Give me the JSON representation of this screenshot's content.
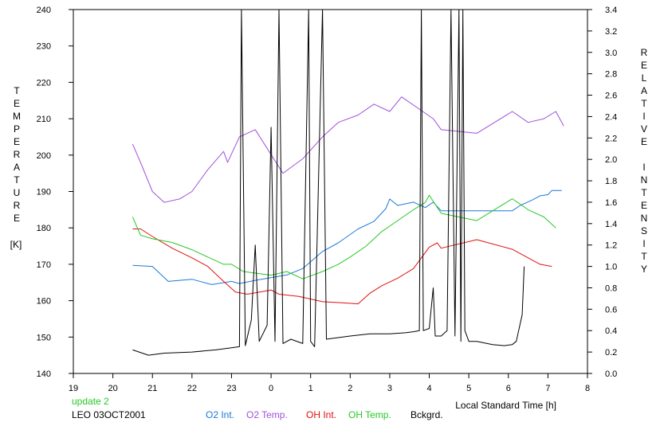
{
  "chart_data": {
    "type": "line",
    "ylabel_left": [
      "T",
      "E",
      "M",
      "P",
      "E",
      "R",
      "A",
      "T",
      "U",
      "R",
      "E"
    ],
    "ylabel_left_unit": "[K]",
    "ylabel_right": [
      "R",
      "E",
      "L",
      "A",
      "T",
      "I",
      "V",
      "E",
      "",
      "I",
      "N",
      "T",
      "E",
      "N",
      "S",
      "I",
      "T",
      "Y"
    ],
    "xlabel": "Local Standard Time [h]",
    "xlim": [
      19,
      32
    ],
    "x_tick_labels": [
      "19",
      "20",
      "21",
      "22",
      "23",
      "0",
      "1",
      "2",
      "3",
      "4",
      "5",
      "6",
      "7",
      "8"
    ],
    "ylim_left": [
      140,
      240
    ],
    "y_left_ticks": [
      "140",
      "150",
      "160",
      "170",
      "180",
      "190",
      "200",
      "210",
      "220",
      "230",
      "240"
    ],
    "ylim_right": [
      0.0,
      3.4
    ],
    "y_right_ticks": [
      "0.0",
      "0.2",
      "0.4",
      "0.6",
      "0.8",
      "1.0",
      "1.2",
      "1.4",
      "1.6",
      "1.8",
      "2.0",
      "2.2",
      "2.4",
      "2.6",
      "2.8",
      "3.0",
      "3.2",
      "3.4"
    ],
    "grid": false,
    "legend_position": "bottom",
    "series": [
      {
        "name": "O2 Int.",
        "axis": "right",
        "color": "#1e78d8",
        "points": [
          [
            20.5,
            1.01
          ],
          [
            21.0,
            1.0
          ],
          [
            21.4,
            0.86
          ],
          [
            22.0,
            0.88
          ],
          [
            22.5,
            0.83
          ],
          [
            23.0,
            0.86
          ],
          [
            23.2,
            0.84
          ],
          [
            23.6,
            0.87
          ],
          [
            24.4,
            0.92
          ],
          [
            24.8,
            0.98
          ],
          [
            25.3,
            1.14
          ],
          [
            25.7,
            1.22
          ],
          [
            26.2,
            1.35
          ],
          [
            26.6,
            1.42
          ],
          [
            26.9,
            1.54
          ],
          [
            27.0,
            1.63
          ],
          [
            27.2,
            1.57
          ],
          [
            27.6,
            1.6
          ],
          [
            27.9,
            1.55
          ],
          [
            28.1,
            1.6
          ],
          [
            28.3,
            1.52
          ],
          [
            30.1,
            1.52
          ],
          [
            30.3,
            1.57
          ],
          [
            30.6,
            1.62
          ],
          [
            30.8,
            1.66
          ],
          [
            31.0,
            1.67
          ],
          [
            31.1,
            1.71
          ],
          [
            31.35,
            1.71
          ]
        ]
      },
      {
        "name": "O2 Temp.",
        "axis": "left",
        "color": "#a050d8",
        "points": [
          [
            20.5,
            203
          ],
          [
            20.7,
            198
          ],
          [
            21.0,
            190
          ],
          [
            21.3,
            187
          ],
          [
            21.7,
            188
          ],
          [
            22.0,
            190
          ],
          [
            22.4,
            196
          ],
          [
            22.8,
            201
          ],
          [
            22.9,
            198
          ],
          [
            23.2,
            205
          ],
          [
            23.6,
            207
          ],
          [
            24.3,
            195
          ],
          [
            24.8,
            199
          ],
          [
            25.3,
            205
          ],
          [
            25.7,
            209
          ],
          [
            26.2,
            211
          ],
          [
            26.6,
            214
          ],
          [
            27.0,
            212
          ],
          [
            27.3,
            216
          ],
          [
            27.7,
            213
          ],
          [
            28.1,
            210
          ],
          [
            28.3,
            207
          ],
          [
            29.2,
            206
          ],
          [
            30.1,
            212
          ],
          [
            30.5,
            209
          ],
          [
            30.9,
            210
          ],
          [
            31.2,
            212
          ],
          [
            31.4,
            208
          ]
        ]
      },
      {
        "name": "OH Int.",
        "axis": "right",
        "color": "#e01010",
        "points": [
          [
            20.5,
            1.35
          ],
          [
            20.7,
            1.35
          ],
          [
            21.0,
            1.28
          ],
          [
            21.5,
            1.17
          ],
          [
            22.0,
            1.08
          ],
          [
            22.4,
            1.0
          ],
          [
            22.8,
            0.86
          ],
          [
            23.1,
            0.76
          ],
          [
            23.4,
            0.74
          ],
          [
            24.0,
            0.78
          ],
          [
            24.2,
            0.74
          ],
          [
            24.7,
            0.72
          ],
          [
            25.3,
            0.67
          ],
          [
            25.8,
            0.66
          ],
          [
            26.2,
            0.65
          ],
          [
            26.5,
            0.75
          ],
          [
            26.8,
            0.82
          ],
          [
            27.2,
            0.89
          ],
          [
            27.6,
            0.98
          ],
          [
            27.8,
            1.08
          ],
          [
            28.0,
            1.18
          ],
          [
            28.2,
            1.22
          ],
          [
            28.3,
            1.17
          ],
          [
            29.2,
            1.25
          ],
          [
            30.1,
            1.16
          ],
          [
            30.5,
            1.08
          ],
          [
            30.8,
            1.02
          ],
          [
            31.1,
            1.0
          ]
        ]
      },
      {
        "name": "OH Temp.",
        "axis": "left",
        "color": "#28c828",
        "points": [
          [
            20.5,
            183
          ],
          [
            20.7,
            178
          ],
          [
            21.0,
            177
          ],
          [
            21.5,
            176
          ],
          [
            22.0,
            174
          ],
          [
            22.4,
            172
          ],
          [
            22.8,
            170
          ],
          [
            23.0,
            170
          ],
          [
            23.3,
            168
          ],
          [
            24.0,
            167
          ],
          [
            24.4,
            168
          ],
          [
            24.8,
            166
          ],
          [
            25.3,
            168
          ],
          [
            25.7,
            170
          ],
          [
            26.0,
            172
          ],
          [
            26.4,
            175
          ],
          [
            26.8,
            179
          ],
          [
            27.2,
            182
          ],
          [
            27.6,
            185
          ],
          [
            27.9,
            187
          ],
          [
            28.0,
            189
          ],
          [
            28.3,
            184
          ],
          [
            29.2,
            182
          ],
          [
            30.1,
            188
          ],
          [
            30.5,
            185
          ],
          [
            30.9,
            183
          ],
          [
            31.2,
            180
          ]
        ]
      },
      {
        "name": "Bckgrd.",
        "axis": "right",
        "color": "#000000",
        "points": [
          [
            20.5,
            0.22
          ],
          [
            20.9,
            0.17
          ],
          [
            21.3,
            0.19
          ],
          [
            22.0,
            0.2
          ],
          [
            22.6,
            0.22
          ],
          [
            23.0,
            0.24
          ],
          [
            23.2,
            0.25
          ],
          [
            23.25,
            3.4
          ],
          [
            23.35,
            0.26
          ],
          [
            23.5,
            0.5
          ],
          [
            23.6,
            1.2
          ],
          [
            23.7,
            0.3
          ],
          [
            23.9,
            0.45
          ],
          [
            24.0,
            2.3
          ],
          [
            24.1,
            0.3
          ],
          [
            24.2,
            3.4
          ],
          [
            24.3,
            0.28
          ],
          [
            24.5,
            0.32
          ],
          [
            24.8,
            0.28
          ],
          [
            24.95,
            3.4
          ],
          [
            25.0,
            0.3
          ],
          [
            25.1,
            0.25
          ],
          [
            25.3,
            3.4
          ],
          [
            25.4,
            0.32
          ],
          [
            25.6,
            0.33
          ],
          [
            26.0,
            0.35
          ],
          [
            26.5,
            0.37
          ],
          [
            27.0,
            0.37
          ],
          [
            27.4,
            0.38
          ],
          [
            27.6,
            0.39
          ],
          [
            27.75,
            0.4
          ],
          [
            27.8,
            3.4
          ],
          [
            27.85,
            0.4
          ],
          [
            28.0,
            0.42
          ],
          [
            28.1,
            0.8
          ],
          [
            28.15,
            0.35
          ],
          [
            28.3,
            0.35
          ],
          [
            28.45,
            0.4
          ],
          [
            28.55,
            3.4
          ],
          [
            28.65,
            0.35
          ],
          [
            28.75,
            3.4
          ],
          [
            28.8,
            0.3
          ],
          [
            28.85,
            3.4
          ],
          [
            28.9,
            0.4
          ],
          [
            29.0,
            0.3
          ],
          [
            29.2,
            0.3
          ],
          [
            29.6,
            0.27
          ],
          [
            29.9,
            0.26
          ],
          [
            30.1,
            0.27
          ],
          [
            30.2,
            0.3
          ],
          [
            30.35,
            0.55
          ],
          [
            30.4,
            1.0
          ]
        ]
      }
    ]
  },
  "footer": {
    "update_label": "update 2",
    "station_label": "LEO 03OCT2001",
    "legend_o2_int": "O2 Int.",
    "legend_o2_temp": "O2 Temp.",
    "legend_oh_int": "OH Int.",
    "legend_oh_temp": "OH Temp.",
    "legend_bckgrd": "Bckgrd."
  },
  "colors": {
    "o2_int": "#1e78d8",
    "o2_temp": "#a050d8",
    "oh_int": "#e01010",
    "oh_temp": "#28c828",
    "bckgrd": "#000000",
    "update": "#28c828"
  }
}
